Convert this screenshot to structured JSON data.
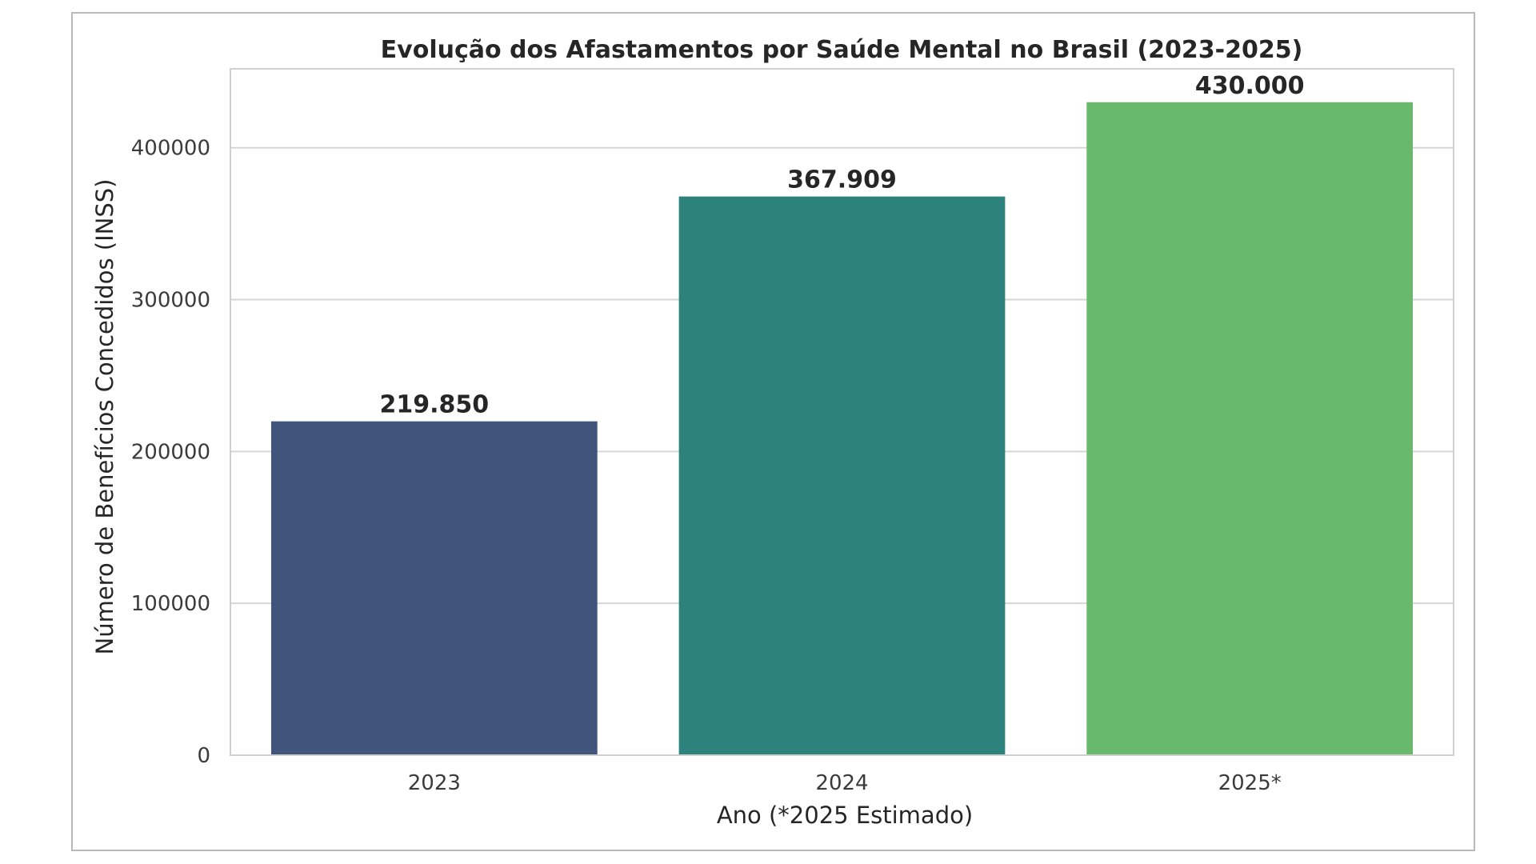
{
  "chart_data": {
    "type": "bar",
    "title": "Evolução dos Afastamentos por Saúde Mental no Brasil (2023-2025)",
    "xlabel": "Ano (*2025 Estimado)",
    "ylabel": "Número de Benefícios Concedidos (INSS)",
    "categories": [
      "2023",
      "2024",
      "2025*"
    ],
    "values": [
      219850,
      367909,
      430000
    ],
    "data_labels": [
      "219.850",
      "367.909",
      "430.000"
    ],
    "colors": [
      "#41547b",
      "#2e827d",
      "#69b96d"
    ],
    "ylim": [
      0,
      452000
    ],
    "yticks": [
      0,
      100000,
      200000,
      300000,
      400000
    ],
    "ytick_labels": [
      "0",
      "100000",
      "200000",
      "300000",
      "400000"
    ],
    "grid": true,
    "legend": "none"
  }
}
